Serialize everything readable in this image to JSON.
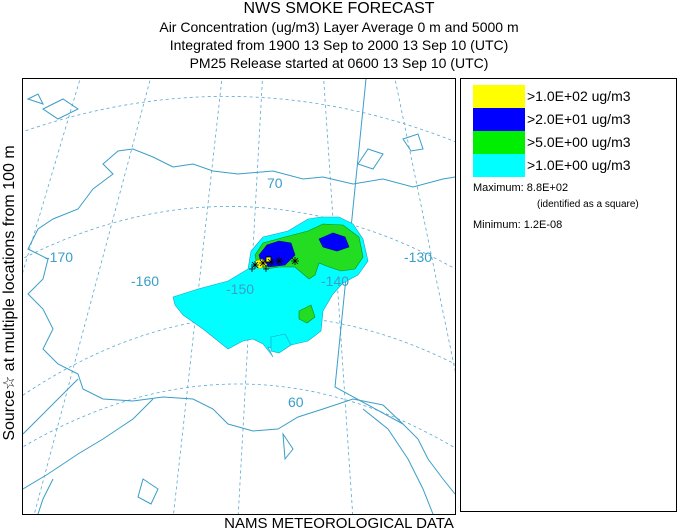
{
  "header": {
    "title": "NWS SMOKE FORECAST",
    "line2": "Air Concentration (ug/m3) Layer Average    0 m and  5000 m",
    "line3": "Integrated from 1900 13 Sep to 2000 13 Sep 10 (UTC)",
    "line4": "PM25 Release started at 0600 13 Sep 10 (UTC)"
  },
  "side_label": "Source☆  at multiple locations    from   100 m",
  "map": {
    "lon_labels": [
      "-170",
      "-160",
      "-150",
      "-140",
      "-130"
    ],
    "lat_labels": [
      "70",
      "60"
    ],
    "colors": {
      "coast": "#3a9ec8",
      "grid": "#5aa8d0",
      "yellow": "#ffff00",
      "blue": "#0000ff",
      "green": "#22dd22",
      "cyan": "#00ffff"
    }
  },
  "legend": {
    "levels": [
      {
        "label": ">1.0E+02 ug/m3",
        "color": "#ffff00"
      },
      {
        "label": ">2.0E+01 ug/m3",
        "color": "#0000ff"
      },
      {
        "label": ">5.0E+00 ug/m3",
        "color": "#00ee00"
      },
      {
        "label": ">1.0E+00 ug/m3",
        "color": "#00ffff"
      }
    ],
    "maximum": "Maximum: 8.8E+02",
    "maximum_note": "(identified as a square)",
    "minimum": "Minimum: 1.2E-08"
  },
  "footer": "NAMS METEOROLOGICAL DATA"
}
